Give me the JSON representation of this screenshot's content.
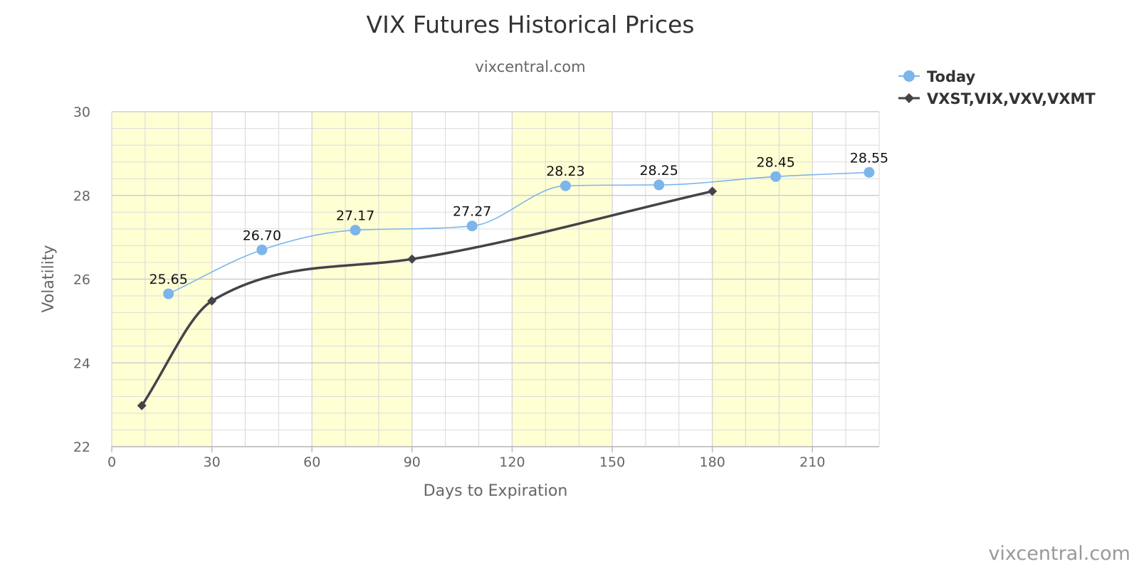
{
  "chart_data": {
    "type": "line",
    "title": "VIX Futures Historical Prices",
    "subtitle": "vixcentral.com",
    "credit": "vixcentral.com",
    "xlabel": "Days to Expiration",
    "ylabel": "Volatility",
    "xlim": [
      0,
      230
    ],
    "ylim": [
      22,
      30
    ],
    "x_ticks": [
      0,
      30,
      60,
      90,
      120,
      150,
      180,
      210
    ],
    "y_ticks": [
      22,
      24,
      26,
      28,
      30
    ],
    "x_minor_step": 10,
    "y_minor_step": 0.4,
    "grid": true,
    "bands": [
      [
        0,
        30
      ],
      [
        60,
        90
      ],
      [
        120,
        150
      ],
      [
        180,
        210
      ]
    ],
    "band_color": "#ffffd4",
    "legend_position": "top-right",
    "series": [
      {
        "name": "Today",
        "color": "#7cb5ec",
        "marker": "circle",
        "smooth": true,
        "show_labels": true,
        "points": [
          {
            "x": 17,
            "y": 25.65,
            "label": "25.65"
          },
          {
            "x": 45,
            "y": 26.7,
            "label": "26.70"
          },
          {
            "x": 73,
            "y": 27.17,
            "label": "27.17"
          },
          {
            "x": 108,
            "y": 27.27,
            "label": "27.27"
          },
          {
            "x": 136,
            "y": 28.23,
            "label": "28.23"
          },
          {
            "x": 164,
            "y": 28.25,
            "label": "28.25"
          },
          {
            "x": 199,
            "y": 28.45,
            "label": "28.45"
          },
          {
            "x": 227,
            "y": 28.55,
            "label": "28.55"
          }
        ]
      },
      {
        "name": "VXST,VIX,VXV,VXMT",
        "color": "#434348",
        "marker": "diamond",
        "smooth": true,
        "show_labels": false,
        "points": [
          {
            "x": 9,
            "y": 22.98
          },
          {
            "x": 30,
            "y": 25.48
          },
          {
            "x": 90,
            "y": 26.48
          },
          {
            "x": 180,
            "y": 28.1
          }
        ]
      }
    ]
  }
}
